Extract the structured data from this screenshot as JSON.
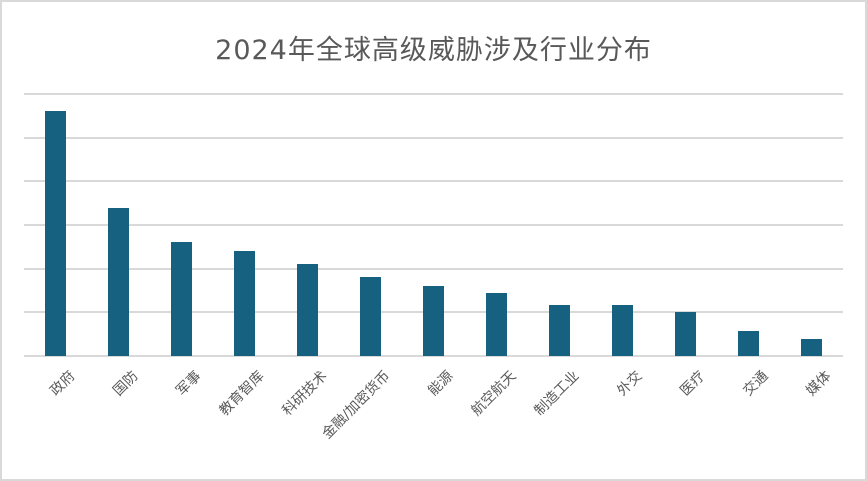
{
  "chart_data": {
    "type": "bar",
    "title": "2024年全球高级威胁涉及行业分布",
    "categories": [
      "政府",
      "国防",
      "军事",
      "教育智库",
      "科研技术",
      "金融/加密货币",
      "能源",
      "航空航天",
      "制造工业",
      "外交",
      "医疗",
      "交通",
      "媒体"
    ],
    "values": [
      5.6,
      3.4,
      2.6,
      2.4,
      2.1,
      1.8,
      1.6,
      1.45,
      1.17,
      1.17,
      1.0,
      0.57,
      0.38
    ],
    "value_unit": "gridline-intervals (y axis unlabeled)",
    "xlabel": "",
    "ylabel": "",
    "ylim": [
      0,
      6
    ],
    "grid_interval": 1,
    "grid_on": true,
    "legend": "none",
    "x_tick_rotation_deg": 45,
    "bar_color": "#166180",
    "gridline_color": "#d9d9d9",
    "text_color": "#595959",
    "frame_border_color": "#d9d9d9",
    "background_color": "#ffffff"
  }
}
